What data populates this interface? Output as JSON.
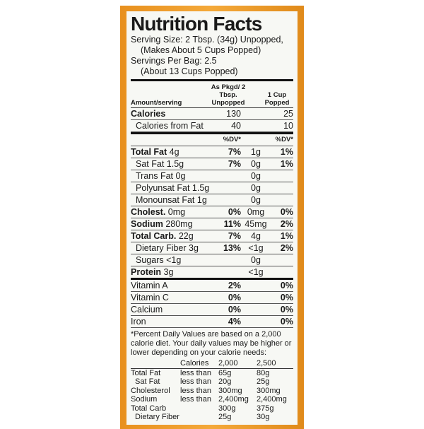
{
  "title": "Nutrition Facts",
  "serving": {
    "line1": "Serving Size: 2 Tbsp. (34g) Unpopped,",
    "line2": "(Makes About 5 Cups Popped)",
    "line3": "Servings Per Bag: 2.5",
    "line4": "(About 13 Cups Popped)"
  },
  "columns": {
    "amount": "Amount/serving",
    "col1": "As Pkgd/ 2 Tbsp. Unpopped",
    "col2": "1 Cup Popped"
  },
  "calories": [
    {
      "name": "Calories",
      "v1": "130",
      "v2": "25"
    },
    {
      "name": "Calories from Fat",
      "v1": "40",
      "v2": "10"
    }
  ],
  "dv_header": "%DV*",
  "nutrients": [
    {
      "name": "Total Fat",
      "amt": "4g",
      "dv1": "7%",
      "v2": "1g",
      "dv2": "1%",
      "bold": true
    },
    {
      "name": "Sat Fat",
      "amt": "1.5g",
      "dv1": "7%",
      "v2": "0g",
      "dv2": "1%",
      "indent": 1
    },
    {
      "name": "Trans Fat",
      "amt": "0g",
      "dv1": "",
      "v2": "0g",
      "dv2": "",
      "indent": 1
    },
    {
      "name": "Polyunsat Fat",
      "amt": "1.5g",
      "dv1": "",
      "v2": "0g",
      "dv2": "",
      "indent": 1
    },
    {
      "name": "Monounsat Fat",
      "amt": "1g",
      "dv1": "",
      "v2": "0g",
      "dv2": "",
      "indent": 1
    },
    {
      "name": "Cholest.",
      "amt": "0mg",
      "dv1": "0%",
      "v2": "0mg",
      "dv2": "0%",
      "bold": true
    },
    {
      "name": "Sodium",
      "amt": "280mg",
      "dv1": "11%",
      "v2": "45mg",
      "dv2": "2%",
      "bold": true
    },
    {
      "name": "Total Carb.",
      "amt": "22g",
      "dv1": "7%",
      "v2": "4g",
      "dv2": "1%",
      "bold": true
    },
    {
      "name": "Dietary Fiber",
      "amt": "3g",
      "dv1": "13%",
      "v2": "<1g",
      "dv2": "2%",
      "indent": 1
    },
    {
      "name": "Sugars",
      "amt": "<1g",
      "dv1": "",
      "v2": "0g",
      "dv2": "",
      "indent": 1
    },
    {
      "name": "Protein",
      "amt": "3g",
      "dv1": "",
      "v2": "<1g",
      "dv2": "",
      "bold": true,
      "sep": true
    }
  ],
  "vitamins": [
    {
      "name": "Vitamin A",
      "dv1": "2%",
      "dv2": "0%"
    },
    {
      "name": "Vitamin C",
      "dv1": "0%",
      "dv2": "0%"
    },
    {
      "name": "Calcium",
      "dv1": "0%",
      "dv2": "0%"
    },
    {
      "name": "Iron",
      "dv1": "4%",
      "dv2": "0%"
    }
  ],
  "footnote": "*Percent Daily Values are based on a 2,000 calorie diet. Your daily values may be higher or lower depending on your calorie needs:",
  "dv_table": {
    "header": [
      "",
      "Calories",
      "2,000",
      "2,500"
    ],
    "rows": [
      [
        "Total Fat",
        "less than",
        "65g",
        "80g"
      ],
      [
        "Sat Fat",
        "less than",
        "20g",
        "25g"
      ],
      [
        "Cholesterol",
        "less than",
        "300mg",
        "300mg"
      ],
      [
        "Sodium",
        "less than",
        "2,400mg",
        "2,400mg"
      ],
      [
        "Total Carb",
        "",
        "300g",
        "375g"
      ],
      [
        "Dietary Fiber",
        "",
        "25g",
        "30g"
      ]
    ]
  },
  "colors": {
    "border": "#f4a93a",
    "label_bg": "#f7f8f4",
    "text": "#1a1a1a"
  }
}
